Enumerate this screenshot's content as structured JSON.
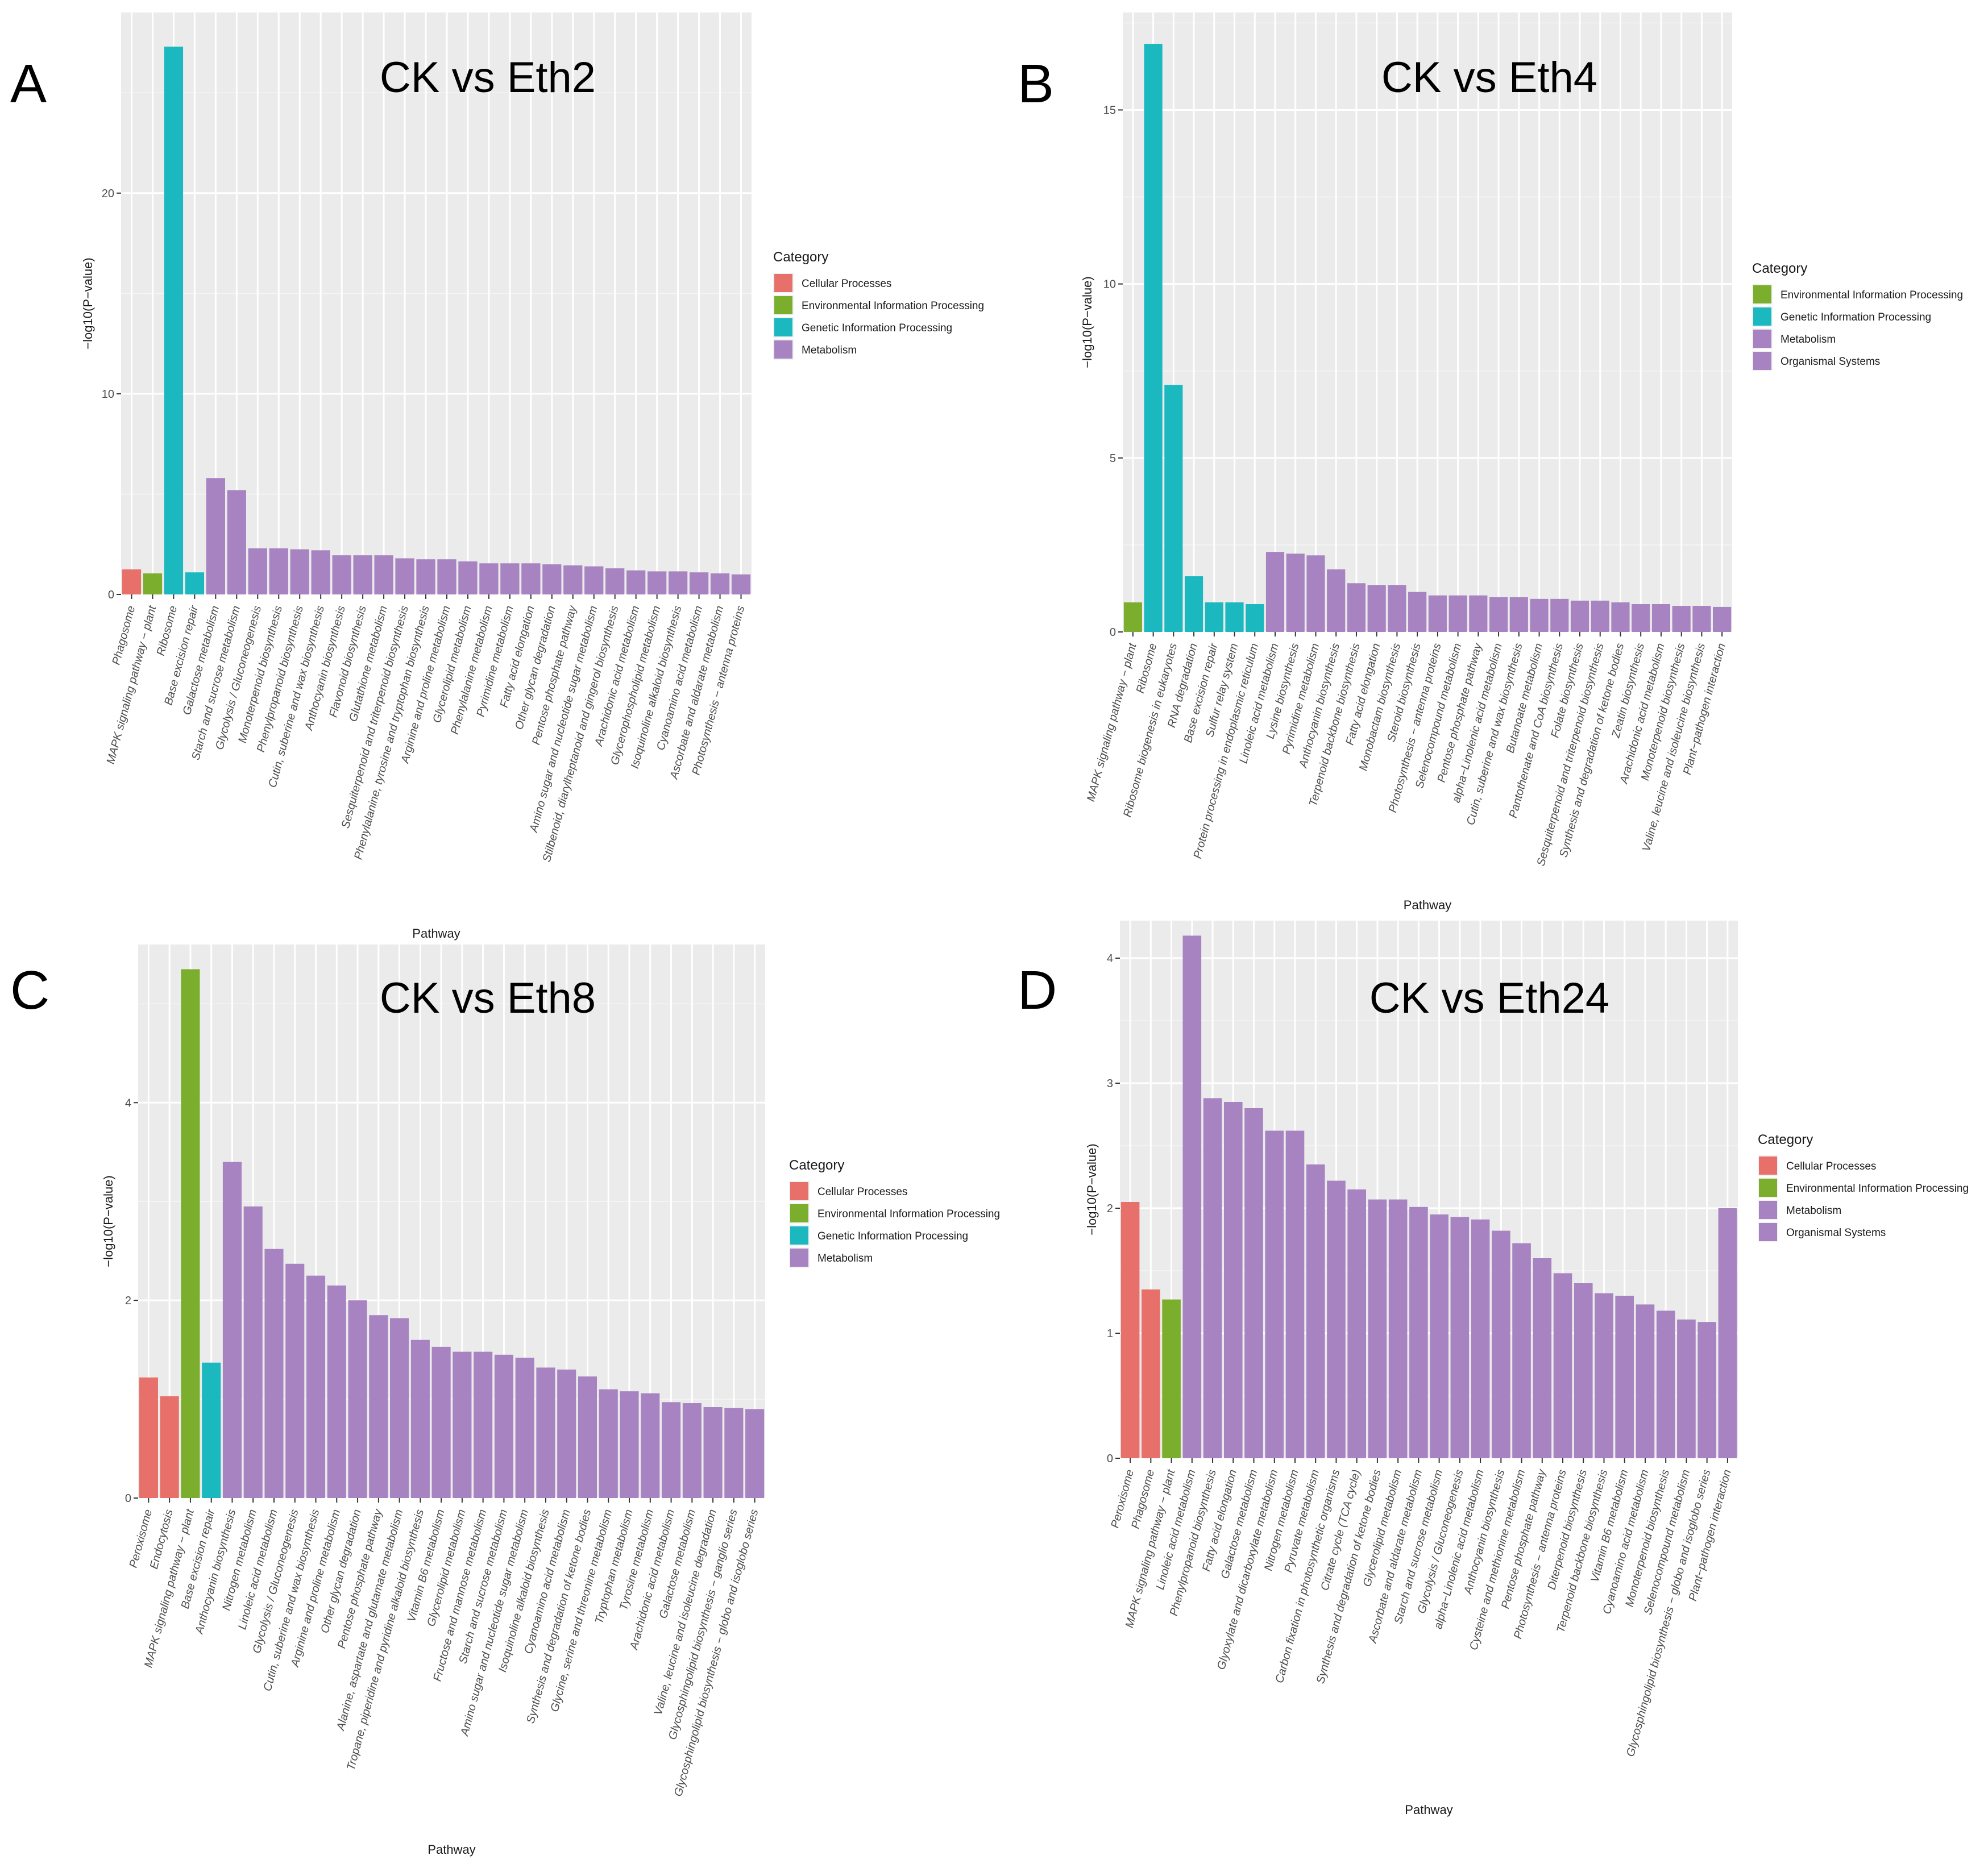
{
  "colors": {
    "Cellular Processes": "#E8706A",
    "Environmental Information Processing": "#7CAE2E",
    "Genetic Information Processing": "#1CB8C0",
    "Metabolism": "#A783C2",
    "Organismal Systems": "#A783C2"
  },
  "chart_data": [
    {
      "type": "bar",
      "panel": "A",
      "title": "CK vs Eth2",
      "xlabel": "Pathway",
      "ylabel": "−log10(P−value)",
      "ylim": [
        0,
        29
      ],
      "yticks": [
        0,
        10,
        20
      ],
      "legend_title": "Category",
      "legend": [
        "Cellular Processes",
        "Environmental Information Processing",
        "Genetic Information Processing",
        "Metabolism"
      ],
      "categories": [
        "Phagosome",
        "MAPK signaling pathway − plant",
        "Ribosome",
        "Base excision repair",
        "Galactose metabolism",
        "Starch and sucrose metabolism",
        "Glycolysis / Gluconeogenesis",
        "Monoterpenoid biosynthesis",
        "Phenylpropanoid biosynthesis",
        "Cutin, suberine and wax biosynthesis",
        "Anthocyanin biosynthesis",
        "Flavonoid biosynthesis",
        "Glutathione metabolism",
        "Sesquiterpenoid and triterpenoid biosynthesis",
        "Phenylalanine, tyrosine and tryptophan biosynthesis",
        "Arginine and proline metabolism",
        "Glycerolipid metabolism",
        "Phenylalanine metabolism",
        "Pyrimidine metabolism",
        "Fatty acid elongation",
        "Other glycan degradation",
        "Pentose phosphate pathway",
        "Amino sugar and nucleotide sugar metabolism",
        "Stilbenoid, diarylheptanoid and gingerol biosynthesis",
        "Arachidonic acid metabolism",
        "Glycerophospholipid metabolism",
        "Isoquinoline alkaloid biosynthesis",
        "Cyanoamino acid metabolism",
        "Ascorbate and aldarate metabolism",
        "Photosynthesis − antenna proteins"
      ],
      "values": [
        1.25,
        1.05,
        27.3,
        1.1,
        5.8,
        5.2,
        2.3,
        2.3,
        2.25,
        2.2,
        1.95,
        1.95,
        1.95,
        1.8,
        1.75,
        1.75,
        1.65,
        1.55,
        1.55,
        1.55,
        1.5,
        1.45,
        1.4,
        1.3,
        1.2,
        1.15,
        1.15,
        1.1,
        1.05,
        1.0
      ],
      "bar_category": [
        "Cellular Processes",
        "Environmental Information Processing",
        "Genetic Information Processing",
        "Genetic Information Processing",
        "Metabolism",
        "Metabolism",
        "Metabolism",
        "Metabolism",
        "Metabolism",
        "Metabolism",
        "Metabolism",
        "Metabolism",
        "Metabolism",
        "Metabolism",
        "Metabolism",
        "Metabolism",
        "Metabolism",
        "Metabolism",
        "Metabolism",
        "Metabolism",
        "Metabolism",
        "Metabolism",
        "Metabolism",
        "Metabolism",
        "Metabolism",
        "Metabolism",
        "Metabolism",
        "Metabolism",
        "Metabolism",
        "Metabolism"
      ]
    },
    {
      "type": "bar",
      "panel": "B",
      "title": "CK vs Eth4",
      "xlabel": "Pathway",
      "ylabel": "−log10(P−value)",
      "ylim": [
        0,
        17.8
      ],
      "yticks": [
        0,
        5,
        10,
        15
      ],
      "legend_title": "Category",
      "legend": [
        "Environmental Information Processing",
        "Genetic Information Processing",
        "Metabolism",
        "Organismal Systems"
      ],
      "categories": [
        "MAPK signaling pathway − plant",
        "Ribosome",
        "Ribosome biogenesis in eukaryotes",
        "RNA degradation",
        "Base excision repair",
        "Sulfur relay system",
        "Protein processing in endoplasmic reticulum",
        "Linoleic acid metabolism",
        "Lysine biosynthesis",
        "Pyrimidine metabolism",
        "Anthocyanin biosynthesis",
        "Terpenoid backbone biosynthesis",
        "Fatty acid elongation",
        "Monobactam biosynthesis",
        "Steroid biosynthesis",
        "Photosynthesis − antenna proteins",
        "Selenocompound metabolism",
        "Pentose phosphate pathway",
        "alpha−Linolenic acid metabolism",
        "Cutin, suberine and wax biosynthesis",
        "Butanoate metabolism",
        "Pantothenate and CoA biosynthesis",
        "Folate biosynthesis",
        "Sesquiterpenoid and triterpenoid biosynthesis",
        "Synthesis and degradation of ketone bodies",
        "Zeatin biosynthesis",
        "Arachidonic acid metabolism",
        "Monoterpenoid biosynthesis",
        "Valine, leucine and isoleucine biosynthesis",
        "Plant−pathogen interaction"
      ],
      "values": [
        0.85,
        16.9,
        7.1,
        1.6,
        0.85,
        0.85,
        0.8,
        2.3,
        2.25,
        2.2,
        1.8,
        1.4,
        1.35,
        1.35,
        1.15,
        1.05,
        1.05,
        1.05,
        1.0,
        1.0,
        0.95,
        0.95,
        0.9,
        0.9,
        0.85,
        0.8,
        0.8,
        0.75,
        0.75,
        0.72
      ],
      "bar_category": [
        "Environmental Information Processing",
        "Genetic Information Processing",
        "Genetic Information Processing",
        "Genetic Information Processing",
        "Genetic Information Processing",
        "Genetic Information Processing",
        "Genetic Information Processing",
        "Metabolism",
        "Metabolism",
        "Metabolism",
        "Metabolism",
        "Metabolism",
        "Metabolism",
        "Metabolism",
        "Metabolism",
        "Metabolism",
        "Metabolism",
        "Metabolism",
        "Metabolism",
        "Metabolism",
        "Metabolism",
        "Metabolism",
        "Metabolism",
        "Metabolism",
        "Metabolism",
        "Metabolism",
        "Metabolism",
        "Metabolism",
        "Metabolism",
        "Organismal Systems"
      ]
    },
    {
      "type": "bar",
      "panel": "C",
      "title": "CK vs Eth8",
      "xlabel": "Pathway",
      "ylabel": "−log10(P−value)",
      "ylim": [
        0,
        5.6
      ],
      "yticks": [
        0,
        2,
        4
      ],
      "legend_title": "Category",
      "legend": [
        "Cellular Processes",
        "Environmental Information Processing",
        "Genetic Information Processing",
        "Metabolism"
      ],
      "categories": [
        "Peroxisome",
        "Endocytosis",
        "MAPK signaling pathway − plant",
        "Base excision repair",
        "Anthocyanin biosynthesis",
        "Nitrogen metabolism",
        "Linoleic acid metabolism",
        "Glycolysis / Gluconeogenesis",
        "Cutin, suberine and wax biosynthesis",
        "Arginine and proline metabolism",
        "Other glycan degradation",
        "Pentose phosphate pathway",
        "Alanine, aspartate and glutamate metabolism",
        "Tropane, piperidine and pyridine alkaloid biosynthesis",
        "Vitamin B6 metabolism",
        "Glycerolipid metabolism",
        "Fructose and mannose metabolism",
        "Starch and sucrose metabolism",
        "Amino sugar and nucleotide sugar metabolism",
        "Isoquinoline alkaloid biosynthesis",
        "Cyanoamino acid metabolism",
        "Synthesis and degradation of ketone bodies",
        "Glycine, serine and threonine metabolism",
        "Tryptophan metabolism",
        "Tyrosine metabolism",
        "Arachidonic acid metabolism",
        "Galactose metabolism",
        "Valine, leucine and isoleucine degradation",
        "Glycosphingolipid biosynthesis − ganglio series",
        "Glycosphingolipid biosynthesis − globo and isoglobo series"
      ],
      "values": [
        1.22,
        1.03,
        5.35,
        1.37,
        3.4,
        2.95,
        2.52,
        2.37,
        2.25,
        2.15,
        2.0,
        1.85,
        1.82,
        1.6,
        1.53,
        1.48,
        1.48,
        1.45,
        1.42,
        1.32,
        1.3,
        1.23,
        1.1,
        1.08,
        1.06,
        0.97,
        0.96,
        0.92,
        0.91,
        0.9
      ],
      "bar_category": [
        "Cellular Processes",
        "Cellular Processes",
        "Environmental Information Processing",
        "Genetic Information Processing",
        "Metabolism",
        "Metabolism",
        "Metabolism",
        "Metabolism",
        "Metabolism",
        "Metabolism",
        "Metabolism",
        "Metabolism",
        "Metabolism",
        "Metabolism",
        "Metabolism",
        "Metabolism",
        "Metabolism",
        "Metabolism",
        "Metabolism",
        "Metabolism",
        "Metabolism",
        "Metabolism",
        "Metabolism",
        "Metabolism",
        "Metabolism",
        "Metabolism",
        "Metabolism",
        "Metabolism",
        "Metabolism",
        "Metabolism"
      ]
    },
    {
      "type": "bar",
      "panel": "D",
      "title": "CK vs Eth24",
      "xlabel": "Pathway",
      "ylabel": "−log10(P−value)",
      "ylim": [
        0,
        4.3
      ],
      "yticks": [
        0,
        1,
        2,
        3,
        4
      ],
      "legend_title": "Category",
      "legend": [
        "Cellular Processes",
        "Environmental Information Processing",
        "Metabolism",
        "Organismal Systems"
      ],
      "categories": [
        "Peroxisome",
        "Phagosome",
        "MAPK signaling pathway − plant",
        "Linoleic acid metabolism",
        "Phenylpropanoid biosynthesis",
        "Fatty acid elongation",
        "Galactose metabolism",
        "Glyoxylate and dicarboxylate metabolism",
        "Nitrogen metabolism",
        "Pyruvate metabolism",
        "Carbon fixation in photosynthetic organisms",
        "Citrate cycle (TCA cycle)",
        "Synthesis and degradation of ketone bodies",
        "Glycerolipid metabolism",
        "Ascorbate and aldarate metabolism",
        "Starch and sucrose metabolism",
        "Glycolysis / Gluconeogenesis",
        "alpha−Linolenic acid metabolism",
        "Anthocyanin biosynthesis",
        "Cysteine and methionine metabolism",
        "Pentose phosphate pathway",
        "Photosynthesis − antenna proteins",
        "Diterpenoid biosynthesis",
        "Terpenoid backbone biosynthesis",
        "Vitamin B6 metabolism",
        "Cyanoamino acid metabolism",
        "Monoterpenoid biosynthesis",
        "Selenocompound metabolism",
        "Glycosphingolipid biosynthesis − globo and isoglobo series",
        "Plant−pathogen interaction"
      ],
      "values": [
        2.05,
        1.35,
        1.27,
        4.18,
        2.88,
        2.85,
        2.8,
        2.62,
        2.62,
        2.35,
        2.22,
        2.15,
        2.07,
        2.07,
        2.01,
        1.95,
        1.93,
        1.91,
        1.82,
        1.72,
        1.6,
        1.48,
        1.4,
        1.32,
        1.3,
        1.23,
        1.18,
        1.11,
        1.09,
        2.0
      ],
      "bar_category": [
        "Cellular Processes",
        "Cellular Processes",
        "Environmental Information Processing",
        "Metabolism",
        "Metabolism",
        "Metabolism",
        "Metabolism",
        "Metabolism",
        "Metabolism",
        "Metabolism",
        "Metabolism",
        "Metabolism",
        "Metabolism",
        "Metabolism",
        "Metabolism",
        "Metabolism",
        "Metabolism",
        "Metabolism",
        "Metabolism",
        "Metabolism",
        "Metabolism",
        "Metabolism",
        "Metabolism",
        "Metabolism",
        "Metabolism",
        "Metabolism",
        "Metabolism",
        "Metabolism",
        "Metabolism",
        "Organismal Systems"
      ]
    }
  ]
}
